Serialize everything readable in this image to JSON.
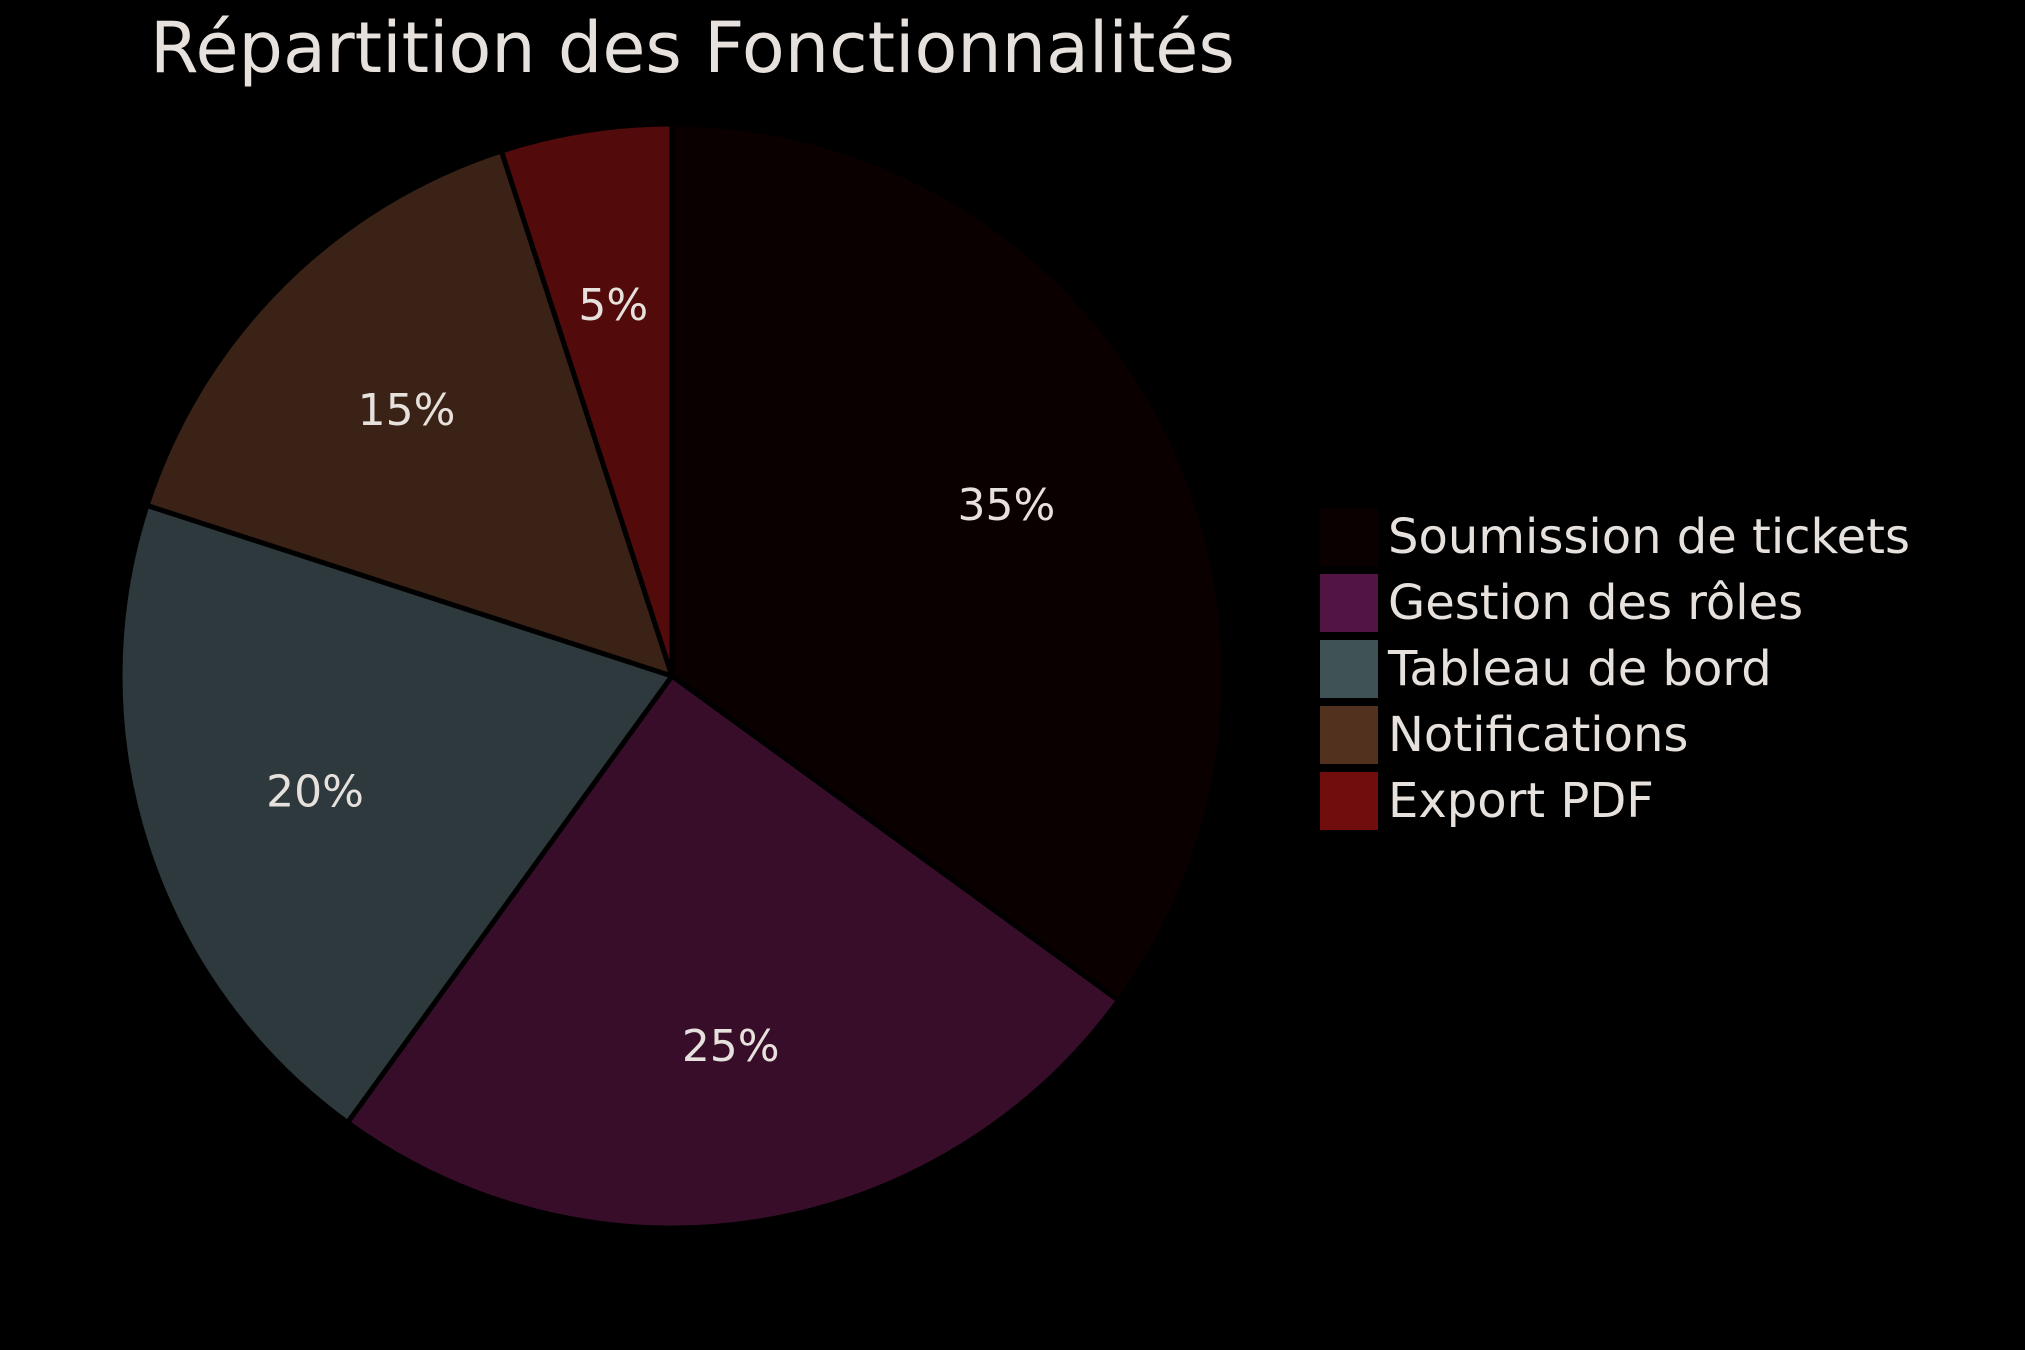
{
  "chart_data": {
    "type": "pie",
    "title": "Répartition des Fonctionnalités",
    "categories": [
      "Soumission de tickets",
      "Gestion des rôles",
      "Tableau de bord",
      "Notifications",
      "Export PDF"
    ],
    "values": [
      35,
      25,
      20,
      15,
      5
    ],
    "value_labels": [
      "35%",
      "25%",
      "20%",
      "15%",
      "5%"
    ],
    "slice_colors": [
      "#0a0000",
      "#380d29",
      "#2d393c",
      "#3a2216",
      "#520a0a"
    ],
    "legend_colors": [
      "#0a0000",
      "#521442",
      "#3f5357",
      "#52321f",
      "#720d0d"
    ],
    "background_color": "#000000",
    "text_color": "#e6e1dc",
    "start_angle": "12 o'clock",
    "direction": "clockwise",
    "legend_position": "right"
  }
}
